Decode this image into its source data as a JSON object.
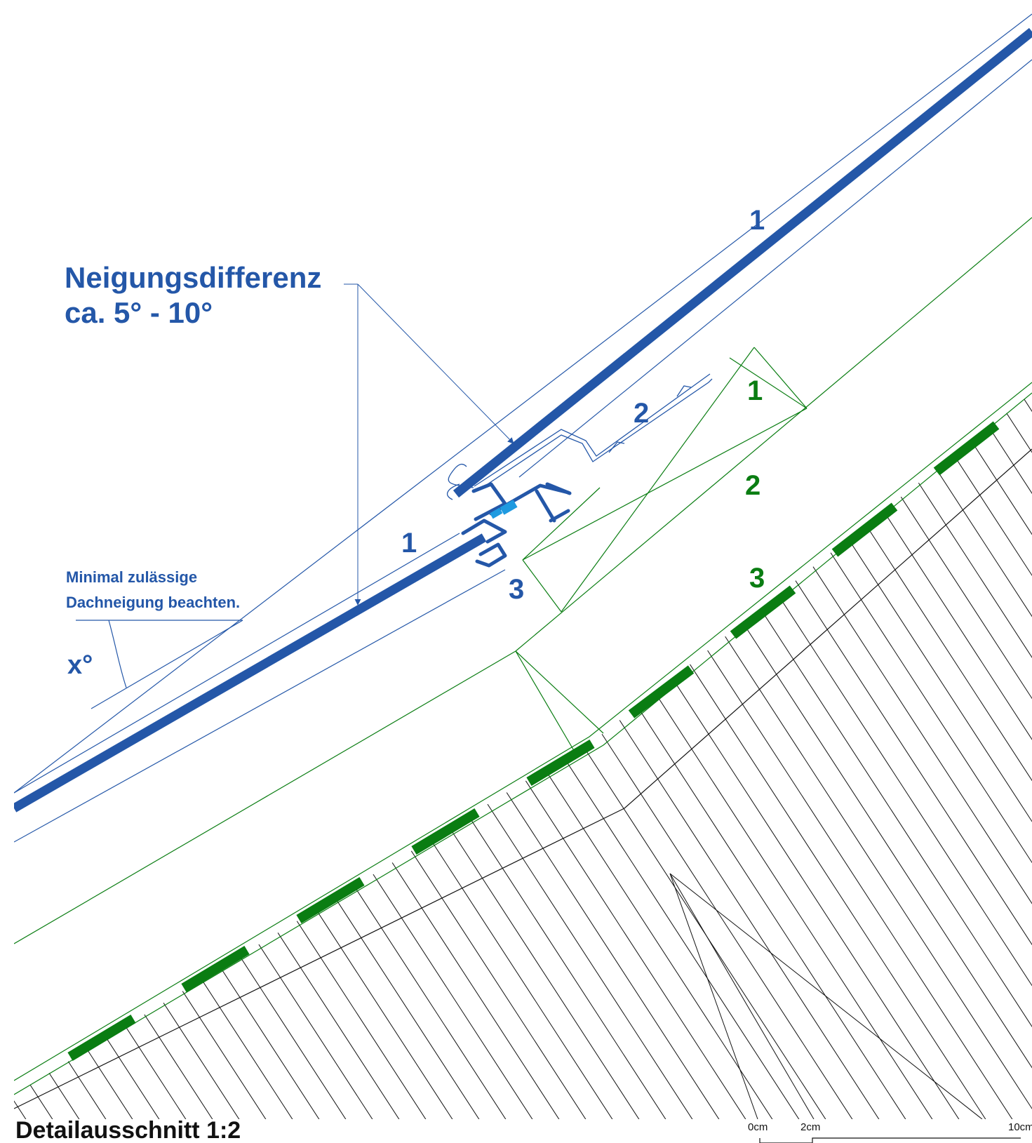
{
  "annotations": {
    "slope_difference_line1": "Neigungsdifferenz",
    "slope_difference_line2": "ca. 5° - 10°",
    "min_pitch_line1": "Minimal zulässige",
    "min_pitch_line2": "Dachneigung beachten.",
    "angle_label": "x°"
  },
  "blue_numbers": {
    "upper_panel": "1",
    "flashing": "2",
    "lower_panel": "1",
    "clamp": "3"
  },
  "green_numbers": {
    "n1": "1",
    "n2": "2",
    "n3": "3"
  },
  "title": "Detailausschnitt 1:2",
  "scale_bar": {
    "label_0": "0cm",
    "label_2": "2cm",
    "label_10": "10cm"
  },
  "colors": {
    "blue": "#2457a8",
    "light_blue": "#1f9ae0",
    "green": "#0a7d12",
    "black": "#111111"
  }
}
